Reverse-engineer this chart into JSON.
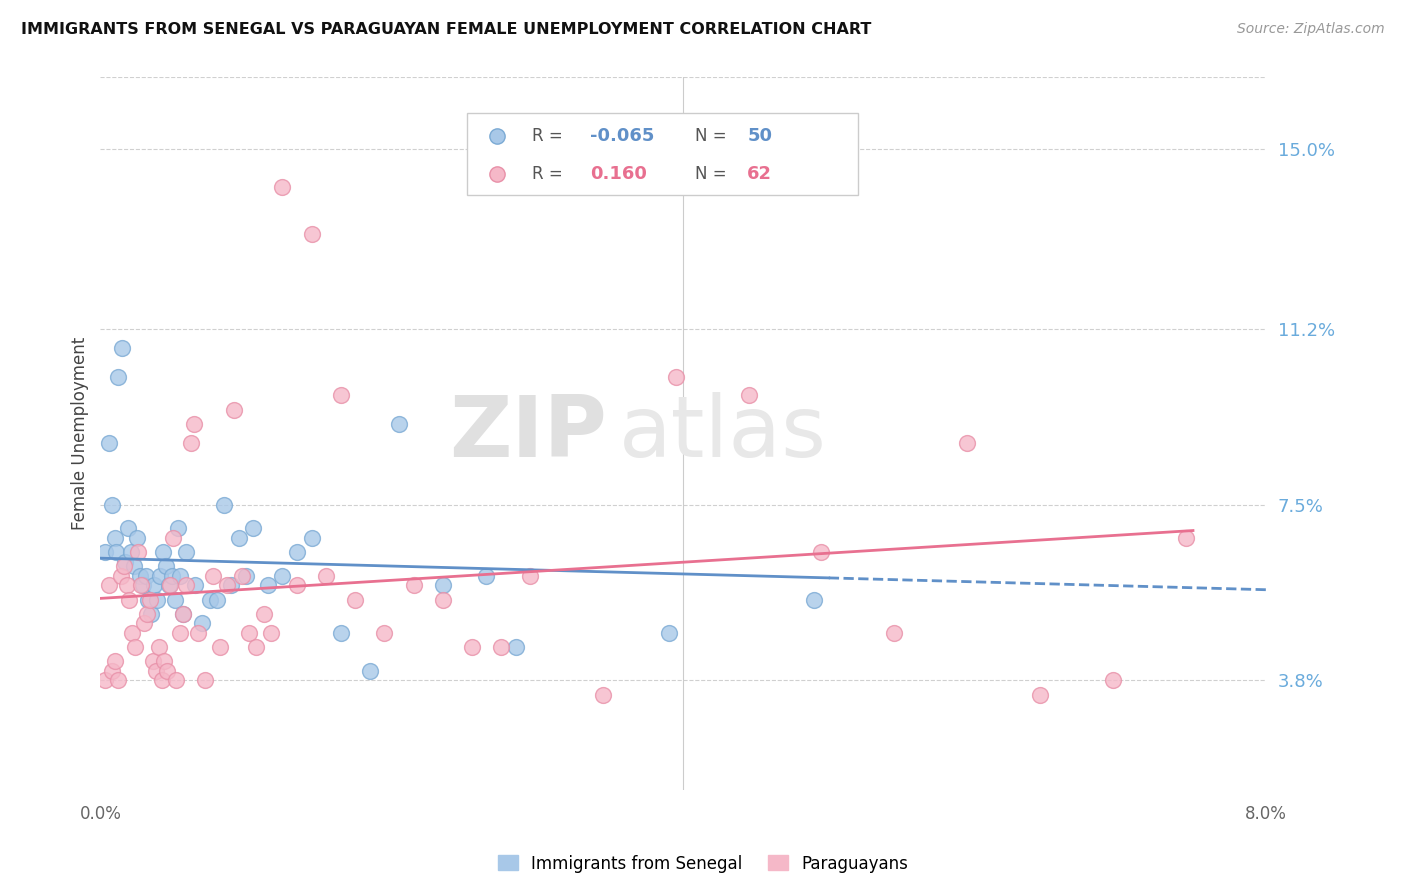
{
  "title": "IMMIGRANTS FROM SENEGAL VS PARAGUAYAN FEMALE UNEMPLOYMENT CORRELATION CHART",
  "source": "Source: ZipAtlas.com",
  "ylabel": "Female Unemployment",
  "y_ticks": [
    3.8,
    7.5,
    11.2,
    15.0
  ],
  "xlim": [
    0.0,
    8.0
  ],
  "ylim": [
    1.5,
    16.5
  ],
  "legend_label1": "Immigrants from Senegal",
  "legend_label2": "Paraguayans",
  "legend_R1": "-0.065",
  "legend_N1": "50",
  "legend_R2": "0.160",
  "legend_N2": "62",
  "color_blue": "#a8c8e8",
  "color_pink": "#f5b8c8",
  "color_blue_edge": "#7baad4",
  "color_pink_edge": "#e890a8",
  "color_blue_line": "#6090c8",
  "color_pink_line": "#e87090",
  "color_ytick": "#6aabdc",
  "watermark1": "ZIP",
  "watermark2": "atlas",
  "blue_points": [
    [
      0.03,
      6.5
    ],
    [
      0.06,
      8.8
    ],
    [
      0.08,
      7.5
    ],
    [
      0.1,
      6.8
    ],
    [
      0.11,
      6.5
    ],
    [
      0.12,
      10.2
    ],
    [
      0.15,
      10.8
    ],
    [
      0.17,
      6.3
    ],
    [
      0.19,
      7.0
    ],
    [
      0.21,
      6.5
    ],
    [
      0.23,
      6.2
    ],
    [
      0.25,
      6.8
    ],
    [
      0.27,
      6.0
    ],
    [
      0.29,
      5.8
    ],
    [
      0.31,
      6.0
    ],
    [
      0.33,
      5.5
    ],
    [
      0.35,
      5.2
    ],
    [
      0.37,
      5.8
    ],
    [
      0.39,
      5.5
    ],
    [
      0.41,
      6.0
    ],
    [
      0.43,
      6.5
    ],
    [
      0.45,
      6.2
    ],
    [
      0.47,
      5.8
    ],
    [
      0.49,
      6.0
    ],
    [
      0.51,
      5.5
    ],
    [
      0.53,
      7.0
    ],
    [
      0.55,
      6.0
    ],
    [
      0.57,
      5.2
    ],
    [
      0.59,
      6.5
    ],
    [
      0.65,
      5.8
    ],
    [
      0.7,
      5.0
    ],
    [
      0.75,
      5.5
    ],
    [
      0.8,
      5.5
    ],
    [
      0.85,
      7.5
    ],
    [
      0.9,
      5.8
    ],
    [
      0.95,
      6.8
    ],
    [
      1.0,
      6.0
    ],
    [
      1.05,
      7.0
    ],
    [
      1.15,
      5.8
    ],
    [
      1.25,
      6.0
    ],
    [
      1.35,
      6.5
    ],
    [
      1.45,
      6.8
    ],
    [
      1.65,
      4.8
    ],
    [
      1.85,
      4.0
    ],
    [
      2.05,
      9.2
    ],
    [
      2.35,
      5.8
    ],
    [
      2.65,
      6.0
    ],
    [
      2.85,
      4.5
    ],
    [
      3.9,
      4.8
    ],
    [
      4.9,
      5.5
    ]
  ],
  "pink_points": [
    [
      0.03,
      3.8
    ],
    [
      0.06,
      5.8
    ],
    [
      0.08,
      4.0
    ],
    [
      0.1,
      4.2
    ],
    [
      0.12,
      3.8
    ],
    [
      0.14,
      6.0
    ],
    [
      0.16,
      6.2
    ],
    [
      0.18,
      5.8
    ],
    [
      0.2,
      5.5
    ],
    [
      0.22,
      4.8
    ],
    [
      0.24,
      4.5
    ],
    [
      0.26,
      6.5
    ],
    [
      0.28,
      5.8
    ],
    [
      0.3,
      5.0
    ],
    [
      0.32,
      5.2
    ],
    [
      0.34,
      5.5
    ],
    [
      0.36,
      4.2
    ],
    [
      0.38,
      4.0
    ],
    [
      0.4,
      4.5
    ],
    [
      0.42,
      3.8
    ],
    [
      0.44,
      4.2
    ],
    [
      0.46,
      4.0
    ],
    [
      0.48,
      5.8
    ],
    [
      0.5,
      6.8
    ],
    [
      0.52,
      3.8
    ],
    [
      0.55,
      4.8
    ],
    [
      0.57,
      5.2
    ],
    [
      0.59,
      5.8
    ],
    [
      0.62,
      8.8
    ],
    [
      0.64,
      9.2
    ],
    [
      0.67,
      4.8
    ],
    [
      0.72,
      3.8
    ],
    [
      0.77,
      6.0
    ],
    [
      0.82,
      4.5
    ],
    [
      0.87,
      5.8
    ],
    [
      0.92,
      9.5
    ],
    [
      0.97,
      6.0
    ],
    [
      1.02,
      4.8
    ],
    [
      1.07,
      4.5
    ],
    [
      1.12,
      5.2
    ],
    [
      1.17,
      4.8
    ],
    [
      1.25,
      14.2
    ],
    [
      1.35,
      5.8
    ],
    [
      1.45,
      13.2
    ],
    [
      1.55,
      6.0
    ],
    [
      1.65,
      9.8
    ],
    [
      1.75,
      5.5
    ],
    [
      1.95,
      4.8
    ],
    [
      2.15,
      5.8
    ],
    [
      2.35,
      5.5
    ],
    [
      2.55,
      4.5
    ],
    [
      2.75,
      4.5
    ],
    [
      2.95,
      6.0
    ],
    [
      3.45,
      3.5
    ],
    [
      3.95,
      10.2
    ],
    [
      4.45,
      9.8
    ],
    [
      4.95,
      6.5
    ],
    [
      5.45,
      4.8
    ],
    [
      5.95,
      8.8
    ],
    [
      6.45,
      3.5
    ],
    [
      6.95,
      3.8
    ],
    [
      7.45,
      6.8
    ]
  ],
  "blue_R": -0.065,
  "pink_R": 0.16,
  "blue_line_x_solid_end": 5.0,
  "pink_line_x_end": 7.5,
  "x_line_end": 8.0
}
